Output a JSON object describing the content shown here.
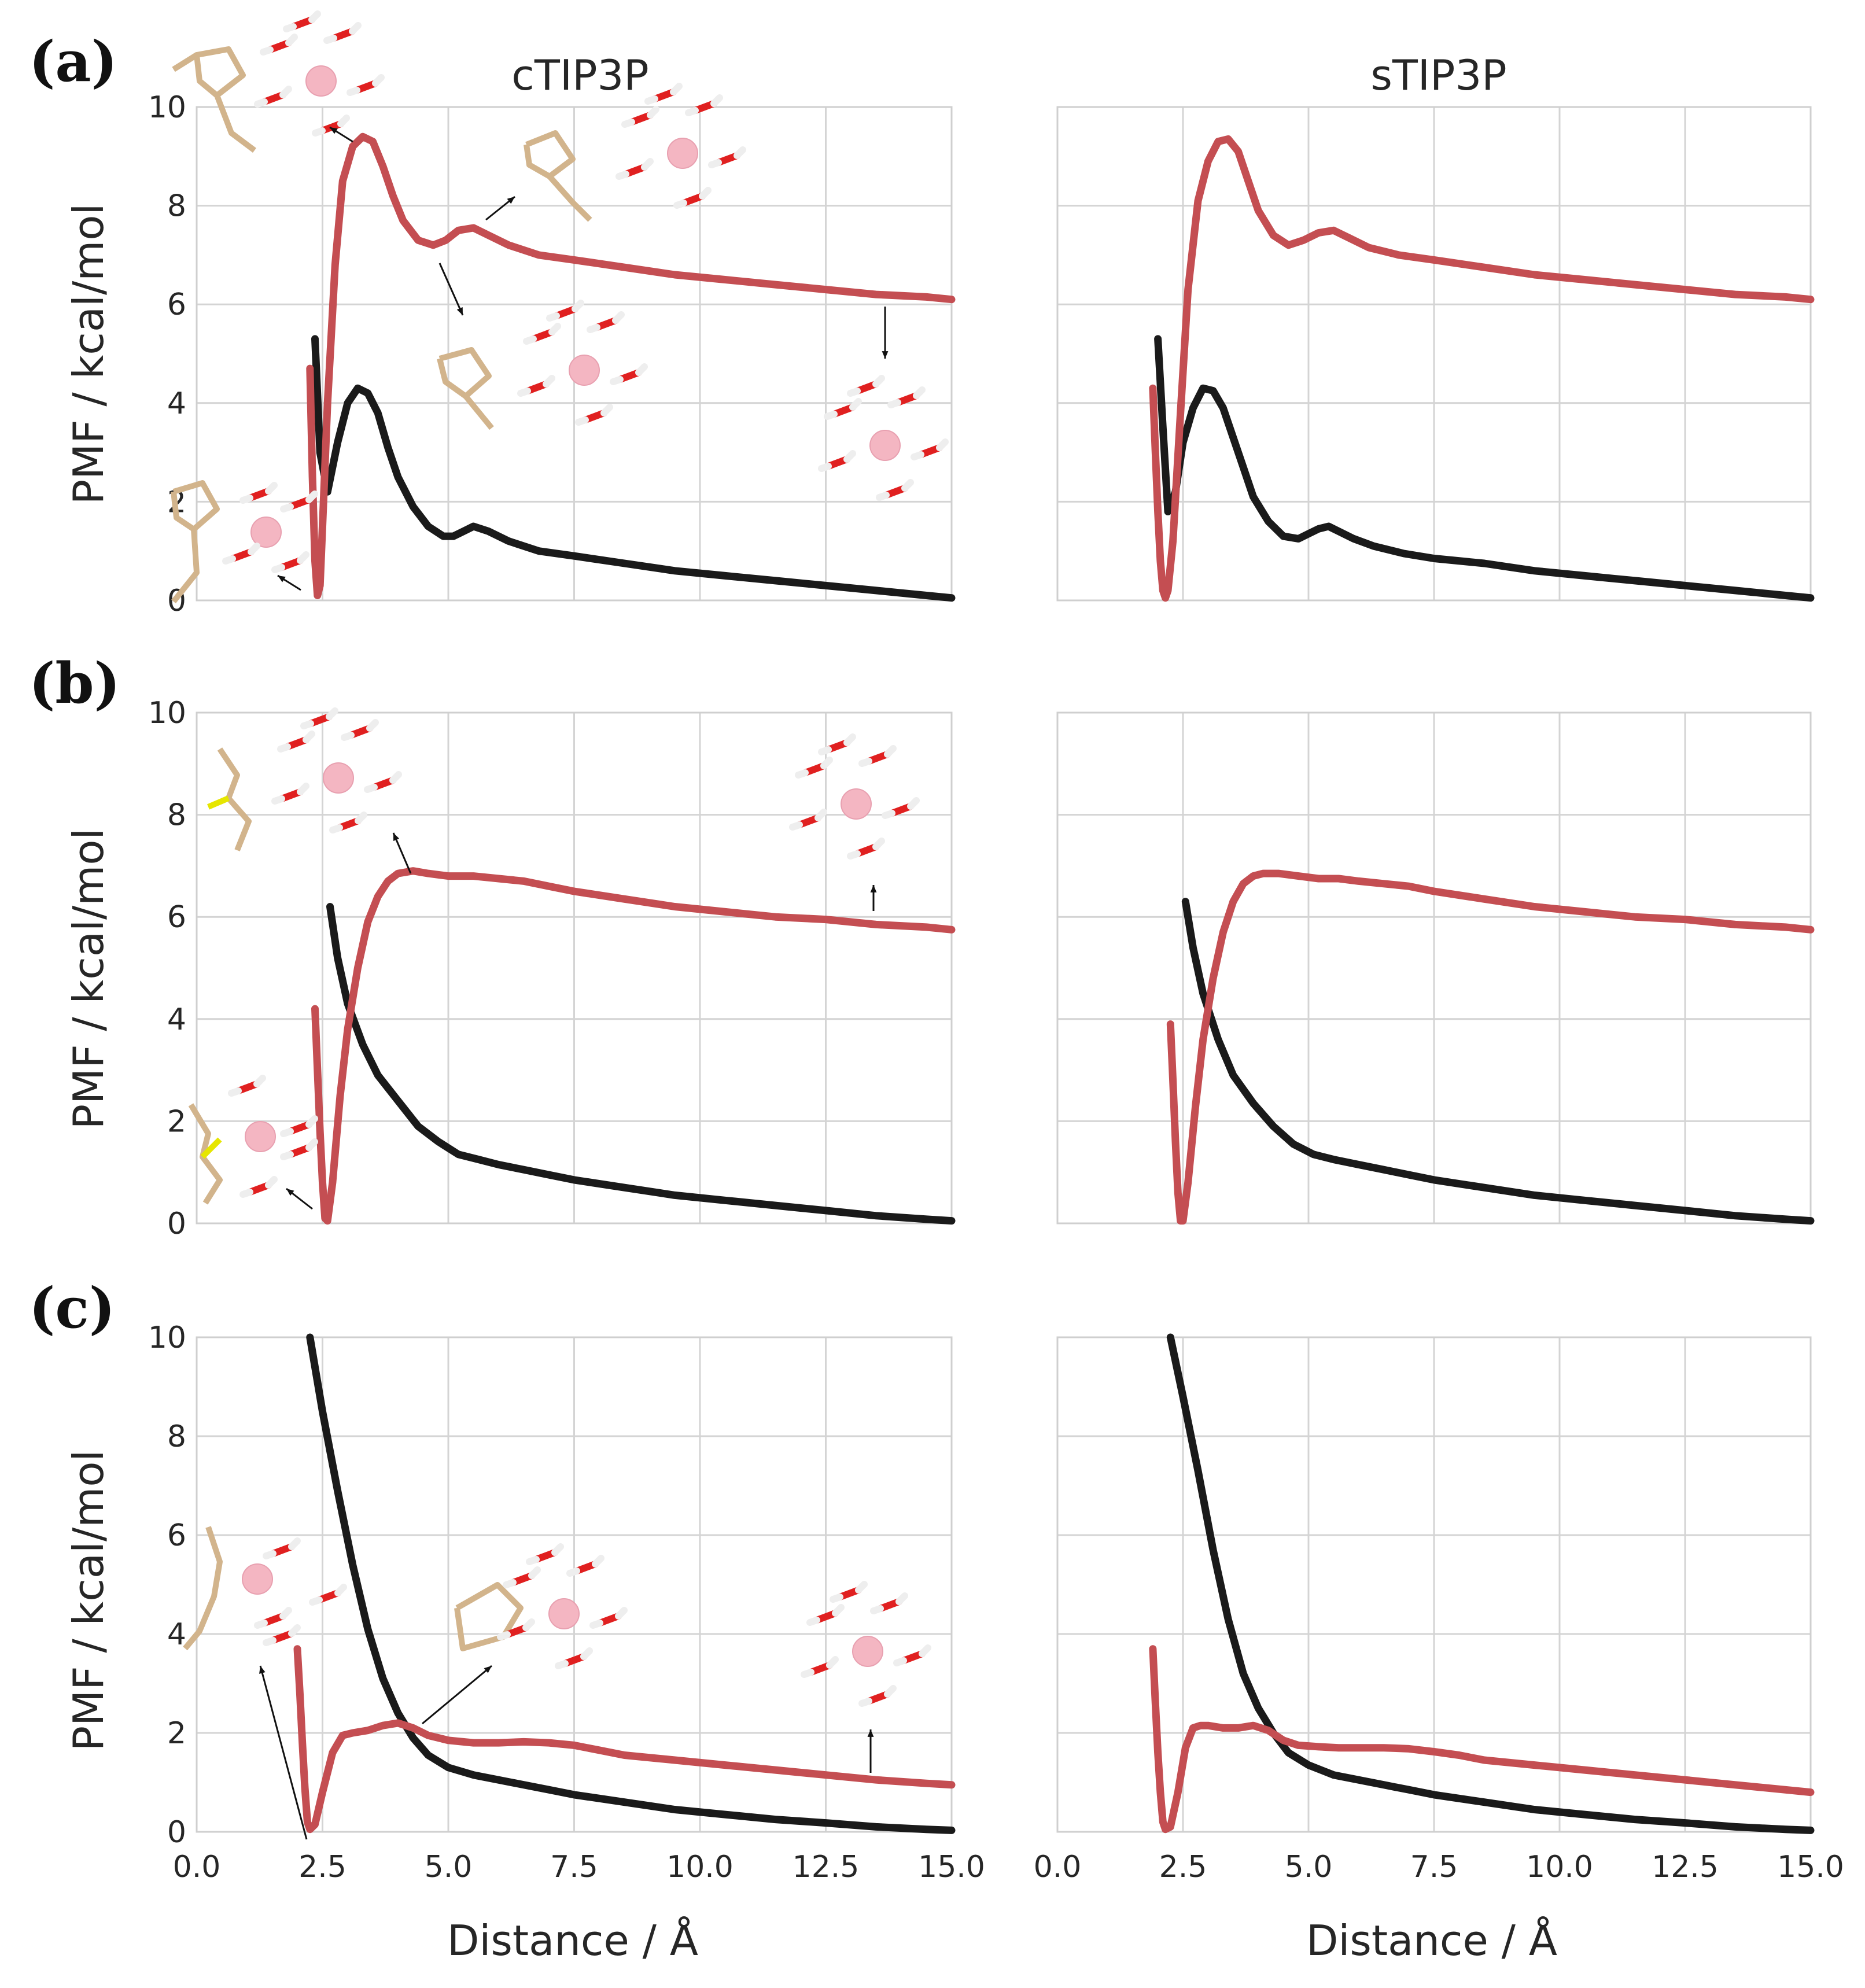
{
  "figure": {
    "column_titles": [
      "cTIP3P",
      "sTIP3P"
    ],
    "panel_labels": [
      "(a)",
      "(b)",
      "(c)"
    ],
    "colors": {
      "black_curve": "#1a1a1a",
      "red_curve": "#c44e52",
      "ion": "#f4b6c2",
      "oxygen": "#e02020",
      "carbon": "#d2b48c",
      "sulfur": "#e6e600",
      "nitrogen": "#3050f8",
      "hydrogen": "#ffffff"
    }
  },
  "chart_data": [
    {
      "type": "line",
      "row": 0,
      "col": 0,
      "title": "cTIP3P",
      "panel_label": "(a)",
      "xlabel": "",
      "ylabel": "PMF / kcal/mol",
      "xlim": [
        0,
        15
      ],
      "ylim": [
        0,
        10
      ],
      "grid": true,
      "xticks": [],
      "yticks": [
        "0",
        "2",
        "4",
        "6",
        "8",
        "10"
      ],
      "series": [
        {
          "name": "black",
          "color": "#1a1a1a",
          "x": [
            2.35,
            2.45,
            2.6,
            2.8,
            3.0,
            3.2,
            3.4,
            3.6,
            3.8,
            4.0,
            4.3,
            4.6,
            4.9,
            5.1,
            5.3,
            5.5,
            5.8,
            6.2,
            6.8,
            7.5,
            8.5,
            9.5,
            10.5,
            11.5,
            12.5,
            13.5,
            14.5,
            15.0
          ],
          "y": [
            5.3,
            3.0,
            2.2,
            3.2,
            4.0,
            4.3,
            4.2,
            3.8,
            3.1,
            2.5,
            1.9,
            1.5,
            1.3,
            1.3,
            1.4,
            1.5,
            1.4,
            1.2,
            1.0,
            0.9,
            0.75,
            0.6,
            0.5,
            0.4,
            0.3,
            0.2,
            0.1,
            0.05
          ]
        },
        {
          "name": "red",
          "color": "#c44e52",
          "x": [
            2.25,
            2.3,
            2.35,
            2.4,
            2.45,
            2.5,
            2.6,
            2.75,
            2.9,
            3.1,
            3.3,
            3.5,
            3.7,
            3.9,
            4.1,
            4.4,
            4.7,
            4.95,
            5.2,
            5.5,
            5.8,
            6.2,
            6.8,
            7.5,
            8.5,
            9.5,
            10.5,
            11.5,
            12.5,
            13.5,
            14.5,
            15.0
          ],
          "y": [
            4.7,
            2.5,
            0.8,
            0.1,
            0.3,
            1.5,
            4.0,
            6.8,
            8.5,
            9.2,
            9.4,
            9.3,
            8.8,
            8.2,
            7.7,
            7.3,
            7.2,
            7.3,
            7.5,
            7.55,
            7.4,
            7.2,
            7.0,
            6.9,
            6.75,
            6.6,
            6.5,
            6.4,
            6.3,
            6.2,
            6.15,
            6.1
          ]
        }
      ]
    },
    {
      "type": "line",
      "row": 0,
      "col": 1,
      "title": "sTIP3P",
      "panel_label": "",
      "xlabel": "",
      "ylabel": "",
      "xlim": [
        0,
        15
      ],
      "ylim": [
        0,
        10
      ],
      "grid": true,
      "xticks": [],
      "yticks": [],
      "series": [
        {
          "name": "black",
          "color": "#1a1a1a",
          "x": [
            2.0,
            2.1,
            2.2,
            2.35,
            2.5,
            2.7,
            2.9,
            3.1,
            3.3,
            3.5,
            3.7,
            3.9,
            4.2,
            4.5,
            4.8,
            5.0,
            5.2,
            5.4,
            5.6,
            5.9,
            6.3,
            6.9,
            7.5,
            8.5,
            9.5,
            10.5,
            11.5,
            12.5,
            13.5,
            14.5,
            15.0
          ],
          "y": [
            5.3,
            3.5,
            1.8,
            2.2,
            3.2,
            3.9,
            4.3,
            4.25,
            3.9,
            3.3,
            2.7,
            2.1,
            1.6,
            1.3,
            1.25,
            1.35,
            1.45,
            1.5,
            1.4,
            1.25,
            1.1,
            0.95,
            0.85,
            0.75,
            0.6,
            0.5,
            0.4,
            0.3,
            0.2,
            0.1,
            0.05
          ]
        },
        {
          "name": "red",
          "color": "#c44e52",
          "x": [
            1.9,
            1.95,
            2.0,
            2.05,
            2.1,
            2.15,
            2.2,
            2.3,
            2.45,
            2.6,
            2.8,
            3.0,
            3.2,
            3.4,
            3.6,
            3.8,
            4.0,
            4.3,
            4.6,
            4.9,
            5.2,
            5.5,
            5.8,
            6.2,
            6.8,
            7.5,
            8.5,
            9.5,
            10.5,
            11.5,
            12.5,
            13.5,
            14.5,
            15.0
          ],
          "y": [
            4.3,
            3.0,
            1.8,
            0.8,
            0.2,
            0.05,
            0.2,
            1.2,
            3.8,
            6.3,
            8.1,
            8.9,
            9.3,
            9.35,
            9.1,
            8.5,
            7.9,
            7.4,
            7.2,
            7.3,
            7.45,
            7.5,
            7.35,
            7.15,
            7.0,
            6.9,
            6.75,
            6.6,
            6.5,
            6.4,
            6.3,
            6.2,
            6.15,
            6.1
          ]
        }
      ]
    },
    {
      "type": "line",
      "row": 1,
      "col": 0,
      "title": "",
      "panel_label": "(b)",
      "xlabel": "",
      "ylabel": "PMF / kcal/mol",
      "xlim": [
        0,
        15
      ],
      "ylim": [
        0,
        10
      ],
      "grid": true,
      "xticks": [],
      "yticks": [
        "0",
        "2",
        "4",
        "6",
        "8",
        "10"
      ],
      "series": [
        {
          "name": "black",
          "color": "#1a1a1a",
          "x": [
            2.65,
            2.8,
            3.0,
            3.3,
            3.6,
            4.0,
            4.4,
            4.8,
            5.2,
            5.6,
            6.0,
            6.5,
            7.0,
            7.5,
            8.5,
            9.5,
            10.5,
            11.5,
            12.5,
            13.5,
            14.5,
            15.0
          ],
          "y": [
            6.2,
            5.2,
            4.3,
            3.5,
            2.9,
            2.4,
            1.9,
            1.6,
            1.35,
            1.25,
            1.15,
            1.05,
            0.95,
            0.85,
            0.7,
            0.55,
            0.45,
            0.35,
            0.25,
            0.15,
            0.08,
            0.05
          ]
        },
        {
          "name": "red",
          "color": "#c44e52",
          "x": [
            2.35,
            2.4,
            2.45,
            2.5,
            2.55,
            2.6,
            2.7,
            2.85,
            3.0,
            3.2,
            3.4,
            3.6,
            3.8,
            4.0,
            4.3,
            4.6,
            5.0,
            5.5,
            6.0,
            6.5,
            7.0,
            7.5,
            8.5,
            9.5,
            10.5,
            11.5,
            12.5,
            13.5,
            14.5,
            15.0
          ],
          "y": [
            4.2,
            3.0,
            1.8,
            0.8,
            0.1,
            0.05,
            0.8,
            2.5,
            3.8,
            5.0,
            5.9,
            6.4,
            6.7,
            6.85,
            6.9,
            6.85,
            6.8,
            6.8,
            6.75,
            6.7,
            6.6,
            6.5,
            6.35,
            6.2,
            6.1,
            6.0,
            5.95,
            5.85,
            5.8,
            5.75
          ]
        }
      ]
    },
    {
      "type": "line",
      "row": 1,
      "col": 1,
      "title": "",
      "panel_label": "",
      "xlabel": "",
      "ylabel": "",
      "xlim": [
        0,
        15
      ],
      "ylim": [
        0,
        10
      ],
      "grid": true,
      "xticks": [],
      "yticks": [],
      "series": [
        {
          "name": "black",
          "color": "#1a1a1a",
          "x": [
            2.55,
            2.7,
            2.9,
            3.2,
            3.5,
            3.9,
            4.3,
            4.7,
            5.1,
            5.5,
            6.0,
            6.5,
            7.0,
            7.5,
            8.5,
            9.5,
            10.5,
            11.5,
            12.5,
            13.5,
            14.5,
            15.0
          ],
          "y": [
            6.3,
            5.4,
            4.5,
            3.6,
            2.9,
            2.35,
            1.9,
            1.55,
            1.35,
            1.25,
            1.15,
            1.05,
            0.95,
            0.85,
            0.7,
            0.55,
            0.45,
            0.35,
            0.25,
            0.15,
            0.08,
            0.05
          ]
        },
        {
          "name": "red",
          "color": "#c44e52",
          "x": [
            2.25,
            2.3,
            2.35,
            2.4,
            2.45,
            2.5,
            2.6,
            2.75,
            2.9,
            3.1,
            3.3,
            3.5,
            3.7,
            3.9,
            4.1,
            4.4,
            4.8,
            5.2,
            5.6,
            6.0,
            6.5,
            7.0,
            7.5,
            8.5,
            9.5,
            10.5,
            11.5,
            12.5,
            13.5,
            14.5,
            15.0
          ],
          "y": [
            3.9,
            2.8,
            1.6,
            0.6,
            0.05,
            0.05,
            0.8,
            2.3,
            3.6,
            4.8,
            5.7,
            6.3,
            6.65,
            6.8,
            6.85,
            6.85,
            6.8,
            6.75,
            6.75,
            6.7,
            6.65,
            6.6,
            6.5,
            6.35,
            6.2,
            6.1,
            6.0,
            5.95,
            5.85,
            5.8,
            5.75
          ]
        }
      ]
    },
    {
      "type": "line",
      "row": 2,
      "col": 0,
      "title": "",
      "panel_label": "(c)",
      "xlabel": "Distance / Å",
      "ylabel": "PMF / kcal/mol",
      "xlim": [
        0,
        15
      ],
      "ylim": [
        0,
        10
      ],
      "grid": true,
      "xticks": [
        "0.0",
        "2.5",
        "5.0",
        "7.5",
        "10.0",
        "12.5",
        "15.0"
      ],
      "yticks": [
        "0",
        "2",
        "4",
        "6",
        "8",
        "10"
      ],
      "series": [
        {
          "name": "black",
          "color": "#1a1a1a",
          "x": [
            2.25,
            2.5,
            2.8,
            3.1,
            3.4,
            3.7,
            4.0,
            4.3,
            4.6,
            5.0,
            5.5,
            6.0,
            6.5,
            7.0,
            7.5,
            8.5,
            9.5,
            10.5,
            11.5,
            12.5,
            13.5,
            14.5,
            15.0
          ],
          "y": [
            10.0,
            8.5,
            6.9,
            5.4,
            4.1,
            3.1,
            2.4,
            1.9,
            1.55,
            1.3,
            1.15,
            1.05,
            0.95,
            0.85,
            0.75,
            0.6,
            0.45,
            0.35,
            0.25,
            0.18,
            0.1,
            0.05,
            0.03
          ]
        },
        {
          "name": "red",
          "color": "#c44e52",
          "x": [
            2.0,
            2.05,
            2.1,
            2.15,
            2.2,
            2.25,
            2.35,
            2.5,
            2.7,
            2.9,
            3.1,
            3.4,
            3.7,
            4.0,
            4.3,
            4.6,
            5.0,
            5.5,
            6.0,
            6.5,
            7.0,
            7.5,
            8.0,
            8.5,
            9.5,
            10.5,
            11.5,
            12.5,
            13.5,
            14.5,
            15.0
          ],
          "y": [
            3.7,
            2.8,
            1.8,
            0.9,
            0.2,
            0.05,
            0.15,
            0.8,
            1.6,
            1.95,
            2.0,
            2.05,
            2.15,
            2.2,
            2.1,
            1.95,
            1.85,
            1.8,
            1.8,
            1.82,
            1.8,
            1.75,
            1.65,
            1.55,
            1.45,
            1.35,
            1.25,
            1.15,
            1.05,
            0.98,
            0.95
          ]
        }
      ]
    },
    {
      "type": "line",
      "row": 2,
      "col": 1,
      "title": "",
      "panel_label": "",
      "xlabel": "Distance / Å",
      "ylabel": "",
      "xlim": [
        0,
        15
      ],
      "ylim": [
        0,
        10
      ],
      "grid": true,
      "xticks": [
        "0.0",
        "2.5",
        "5.0",
        "7.5",
        "10.0",
        "12.5",
        "15.0"
      ],
      "yticks": [],
      "series": [
        {
          "name": "black",
          "color": "#1a1a1a",
          "x": [
            2.25,
            2.5,
            2.8,
            3.1,
            3.4,
            3.7,
            4.0,
            4.3,
            4.6,
            5.0,
            5.5,
            6.0,
            6.5,
            7.0,
            7.5,
            8.5,
            9.5,
            10.5,
            11.5,
            12.5,
            13.5,
            14.5,
            15.0
          ],
          "y": [
            10.0,
            8.8,
            7.3,
            5.7,
            4.3,
            3.2,
            2.5,
            2.0,
            1.6,
            1.35,
            1.15,
            1.05,
            0.95,
            0.85,
            0.75,
            0.6,
            0.45,
            0.35,
            0.25,
            0.18,
            0.1,
            0.05,
            0.03
          ]
        },
        {
          "name": "red",
          "color": "#c44e52",
          "x": [
            1.9,
            1.95,
            2.0,
            2.05,
            2.1,
            2.15,
            2.25,
            2.4,
            2.55,
            2.7,
            2.85,
            3.0,
            3.3,
            3.6,
            3.9,
            4.2,
            4.5,
            4.8,
            5.2,
            5.6,
            6.0,
            6.5,
            7.0,
            7.5,
            8.0,
            8.5,
            9.5,
            10.5,
            11.5,
            12.5,
            13.5,
            14.5,
            15.0
          ],
          "y": [
            3.7,
            2.6,
            1.6,
            0.8,
            0.2,
            0.05,
            0.1,
            0.8,
            1.7,
            2.1,
            2.15,
            2.15,
            2.1,
            2.1,
            2.15,
            2.05,
            1.85,
            1.75,
            1.72,
            1.7,
            1.7,
            1.7,
            1.68,
            1.62,
            1.55,
            1.45,
            1.35,
            1.25,
            1.15,
            1.05,
            0.95,
            0.85,
            0.8
          ]
        }
      ]
    }
  ]
}
